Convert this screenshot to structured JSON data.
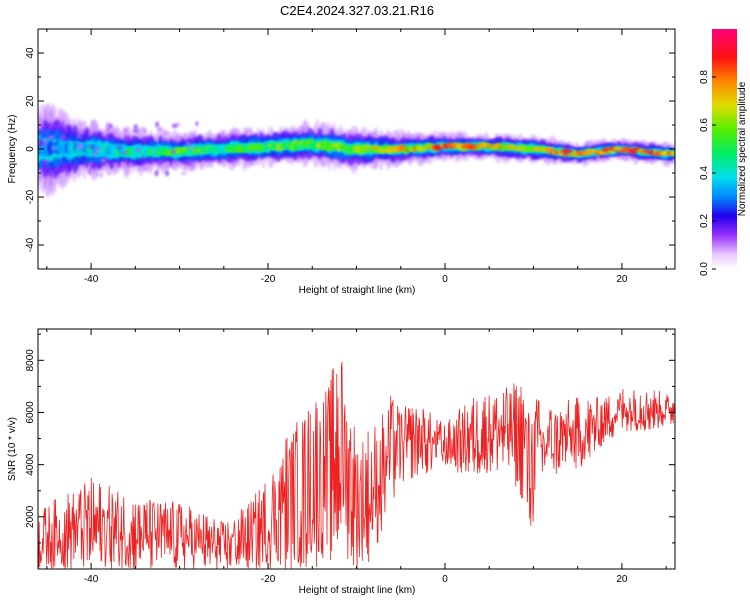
{
  "title": "C2E4.2024.327.03.21.R16",
  "chart_data": [
    {
      "type": "heatmap",
      "xlabel": "Height of straight line (km)",
      "ylabel": "Frequency (Hz)",
      "xlim": [
        -46,
        26
      ],
      "ylim": [
        -50,
        50
      ],
      "xticks": [
        -40,
        -20,
        0,
        20
      ],
      "yticks": [
        40,
        20,
        0,
        -20,
        -40
      ],
      "colorbar": {
        "label": "Normalized spectral amplitude",
        "range": [
          0,
          1
        ],
        "ticks": [
          "0.0",
          "0.2",
          "0.4",
          "0.6",
          "0.8"
        ]
      },
      "ridge": {
        "x": [
          -45,
          -40,
          -35,
          -30,
          -25,
          -20,
          -15,
          -10,
          -5,
          0,
          5,
          10,
          15,
          20,
          25
        ],
        "y": [
          0,
          0,
          -1,
          -1,
          0,
          1,
          2,
          0,
          0,
          1,
          1,
          0,
          -2,
          0,
          -2
        ],
        "amplitude": [
          0.3,
          0.4,
          0.45,
          0.55,
          0.5,
          0.55,
          0.6,
          0.6,
          0.7,
          0.8,
          0.75,
          0.7,
          0.85,
          0.8,
          0.85
        ],
        "spread_hz": [
          8,
          5,
          4,
          3.5,
          3.5,
          3.5,
          4,
          4,
          3,
          2.5,
          2.5,
          2.5,
          2,
          2,
          2
        ]
      }
    },
    {
      "type": "line",
      "xlabel": "Height of straight line (km)",
      "ylabel": "SNR (10 * v/v)",
      "xlim": [
        -46,
        26
      ],
      "ylim": [
        0,
        9200
      ],
      "xticks": [
        -40,
        -20,
        0,
        20
      ],
      "yticks": [
        2000,
        4000,
        6000,
        8000
      ],
      "color": "#ee2222",
      "envelope": {
        "x": [
          -46,
          -40,
          -35,
          -30,
          -25,
          -22,
          -20,
          -18,
          -15,
          -13,
          -12,
          -10,
          -8,
          -6,
          -5,
          -3,
          0,
          3,
          5,
          7,
          9,
          9.5,
          10,
          11,
          12,
          15,
          18,
          20,
          23,
          26
        ],
        "low": [
          0,
          0,
          0,
          0,
          0,
          0,
          0,
          0,
          0,
          300,
          800,
          0,
          400,
          2500,
          3300,
          3600,
          3800,
          3600,
          3700,
          3800,
          2500,
          1200,
          1800,
          3300,
          3600,
          3700,
          4800,
          5300,
          5300,
          5600
        ],
        "high": [
          2300,
          3500,
          2800,
          2600,
          1800,
          2600,
          3600,
          5200,
          6800,
          7200,
          9100,
          5300,
          5600,
          6800,
          6200,
          6400,
          5600,
          6600,
          6900,
          7000,
          7400,
          6200,
          7300,
          6200,
          6300,
          6600,
          6600,
          7000,
          7000,
          6600
        ]
      }
    }
  ]
}
